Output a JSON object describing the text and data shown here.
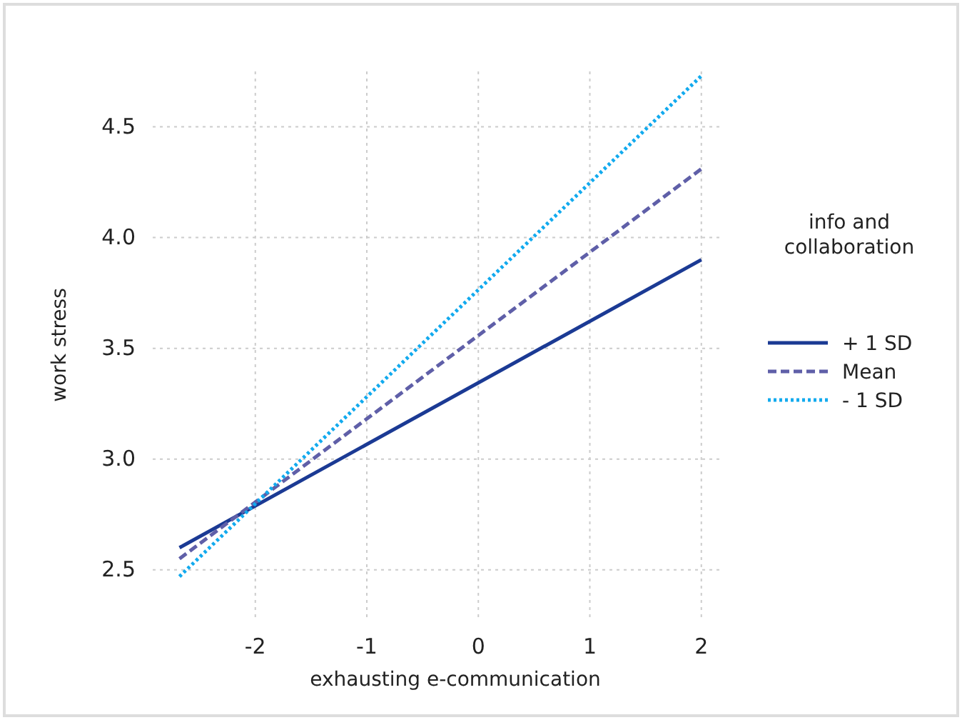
{
  "chart_data": {
    "type": "line",
    "xlabel": "exhausting e-communication",
    "ylabel": "work stress",
    "legend_title": "info and collaboration",
    "legend": "right",
    "grid": true,
    "x": [
      -2.68,
      2
    ],
    "series": [
      {
        "name": "+ 1 SD",
        "color": "#1b3a94",
        "values": [
          2.6,
          3.9
        ],
        "line_style": "solid"
      },
      {
        "name": "Mean",
        "color": "#5f5fa8",
        "values": [
          2.55,
          4.31
        ],
        "line_style": "dashed"
      },
      {
        "name": "- 1 SD",
        "color": "#12aaee",
        "values": [
          2.47,
          4.73
        ],
        "line_style": "dotted"
      }
    ],
    "xlim": [
      -2.92,
      2.2
    ],
    "xticks": [
      -2,
      -1,
      0,
      1,
      2
    ],
    "ylim": [
      2.28,
      4.75
    ],
    "yticks": [
      {
        "value": 2.5,
        "label": "2.5"
      },
      {
        "value": 3,
        "label": "3.0"
      },
      {
        "value": 3.5,
        "label": "3.5"
      },
      {
        "value": 4,
        "label": "4.0"
      },
      {
        "value": 4.5,
        "label": "4.5"
      }
    ]
  }
}
